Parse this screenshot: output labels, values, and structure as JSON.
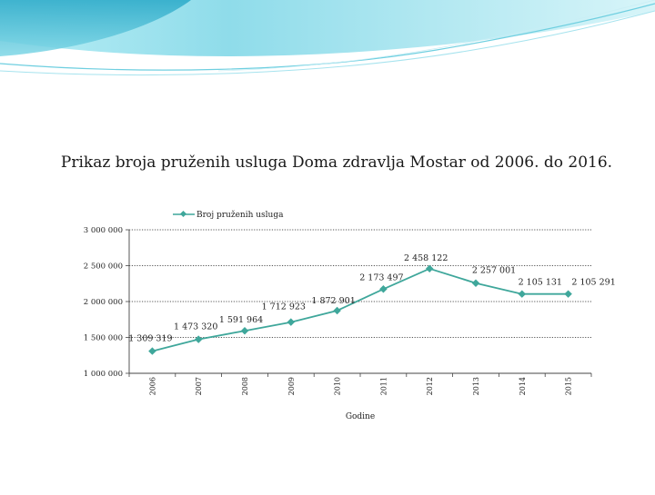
{
  "slide": {
    "title": "Prikaz broja pruženih usluga Doma zdravlja Mostar od  2006. do 2016."
  },
  "colors": {
    "series": "#3fa79b",
    "banner_light": "#7fd7e6",
    "banner_dark": "#1e9fbf"
  },
  "chart_data": {
    "type": "line",
    "title": "Prikaz broja pruženih usluga Doma zdravlja Mostar od  2006. do 2016.",
    "xlabel": "Godine",
    "ylabel": "",
    "x": [
      "2006",
      "2007",
      "2008",
      "2009",
      "2010",
      "2011",
      "2012",
      "2013",
      "2014",
      "2015"
    ],
    "series": [
      {
        "name": "Broj pruženih usluga",
        "values": [
          1309319,
          1473320,
          1591964,
          1712923,
          1872901,
          2173497,
          2458122,
          2257001,
          2105131,
          2105291
        ],
        "labels": [
          "1 309 319",
          "1 473 320",
          "1 591 964",
          "1 712 923",
          "1 872 901",
          "2 173 497",
          "2 458 122",
          "2 257 001",
          "2 105 131",
          "2 105 291"
        ]
      }
    ],
    "ylim": [
      1000000,
      3000000
    ],
    "yticks": [
      1000000,
      1500000,
      2000000,
      2500000,
      3000000
    ],
    "ytick_labels": [
      "1 000 000",
      "1 500 000",
      "2 000 000",
      "2 500 000",
      "3 000 000"
    ],
    "grid": "dotted horizontal",
    "legend": "top-center"
  }
}
